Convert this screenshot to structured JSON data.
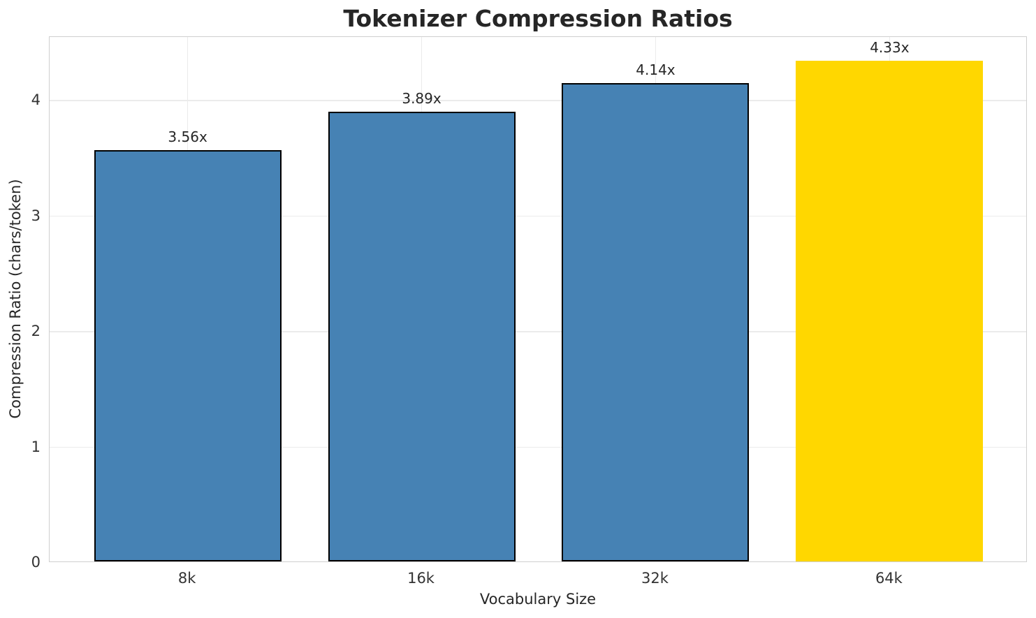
{
  "chart_data": {
    "type": "bar",
    "title": "Tokenizer Compression Ratios",
    "xlabel": "Vocabulary Size",
    "ylabel": "Compression Ratio (chars/token)",
    "categories": [
      "8k",
      "16k",
      "32k",
      "64k"
    ],
    "values": [
      3.56,
      3.89,
      4.14,
      4.33
    ],
    "bar_labels": [
      "3.56x",
      "3.89x",
      "4.14x",
      "4.33x"
    ],
    "yticks": [
      "0",
      "1",
      "2",
      "3",
      "4"
    ],
    "ytick_values": [
      0,
      1,
      2,
      3,
      4
    ],
    "ylim": [
      0,
      4.55
    ],
    "grid": true,
    "legend_position": "none",
    "colors": {
      "bar_default": "#4682B4",
      "bar_highlight": "#FFD700",
      "bar_edge": "#000000",
      "grid": "#ebebeb",
      "spine": "#cfcfcf",
      "text": "#262626"
    },
    "bar_colors": [
      "#4682B4",
      "#4682B4",
      "#4682B4",
      "#FFD700"
    ],
    "bar_edge_colors": [
      "#000000",
      "#000000",
      "#000000",
      "none"
    ]
  }
}
